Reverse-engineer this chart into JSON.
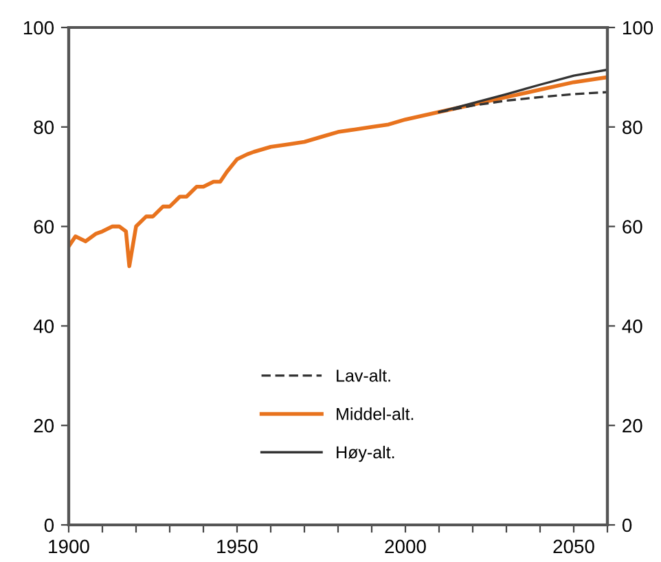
{
  "chart_data": {
    "type": "line",
    "x": [
      1900,
      1902,
      1905,
      1908,
      1910,
      1913,
      1915,
      1917,
      1918,
      1919,
      1920,
      1923,
      1925,
      1928,
      1930,
      1933,
      1935,
      1938,
      1940,
      1943,
      1945,
      1947,
      1950,
      1953,
      1955,
      1960,
      1965,
      1970,
      1975,
      1980,
      1985,
      1990,
      1995,
      2000,
      2010,
      2020,
      2030,
      2040,
      2050,
      2060
    ],
    "series": [
      {
        "name": "Lav-alt.",
        "color": "#333333",
        "line_style": "dashed",
        "x": [
          2010,
          2020,
          2030,
          2040,
          2050,
          2060
        ],
        "values": [
          83,
          84.3,
          85.3,
          86,
          86.6,
          87
        ]
      },
      {
        "name": "Middel-alt.",
        "color": "#e8731e",
        "line_style": "solid",
        "values": [
          56,
          58,
          57,
          58.5,
          59,
          60,
          60,
          59,
          52,
          56,
          60,
          62,
          62,
          64,
          64,
          66,
          66,
          68,
          68,
          69,
          69,
          71,
          73.5,
          74.5,
          75,
          76,
          76.5,
          77,
          78,
          79,
          79.5,
          80,
          80.5,
          81.5,
          83,
          84.5,
          86,
          87.5,
          89,
          90
        ]
      },
      {
        "name": "Høy-alt.",
        "color": "#333333",
        "line_style": "solid",
        "x": [
          2010,
          2020,
          2030,
          2040,
          2050,
          2060
        ],
        "values": [
          83,
          84.8,
          86.6,
          88.5,
          90.3,
          91.5
        ]
      }
    ],
    "xlim": [
      1900,
      2060
    ],
    "xticks": [
      1900,
      {
        "value": 1910,
        "label": null
      },
      {
        "value": 1920,
        "label": null
      },
      {
        "value": 1930,
        "label": null
      },
      {
        "value": 1940,
        "label": null
      },
      1950,
      {
        "value": 1960,
        "label": null
      },
      {
        "value": 1970,
        "label": null
      },
      {
        "value": 1980,
        "label": null
      },
      {
        "value": 1990,
        "label": null
      },
      2000,
      {
        "value": 2010,
        "label": null
      },
      {
        "value": 2020,
        "label": null
      },
      {
        "value": 2030,
        "label": null
      },
      {
        "value": 2040,
        "label": null
      },
      2050,
      {
        "value": 2060,
        "label": null
      }
    ],
    "ylim": [
      0,
      100
    ],
    "yticks": [
      0,
      20,
      40,
      60,
      80,
      100
    ],
    "y2lim": [
      0,
      100
    ],
    "y2ticks": [
      0,
      20,
      40,
      60,
      80,
      100
    ],
    "grid": false,
    "legend": "bottom"
  }
}
